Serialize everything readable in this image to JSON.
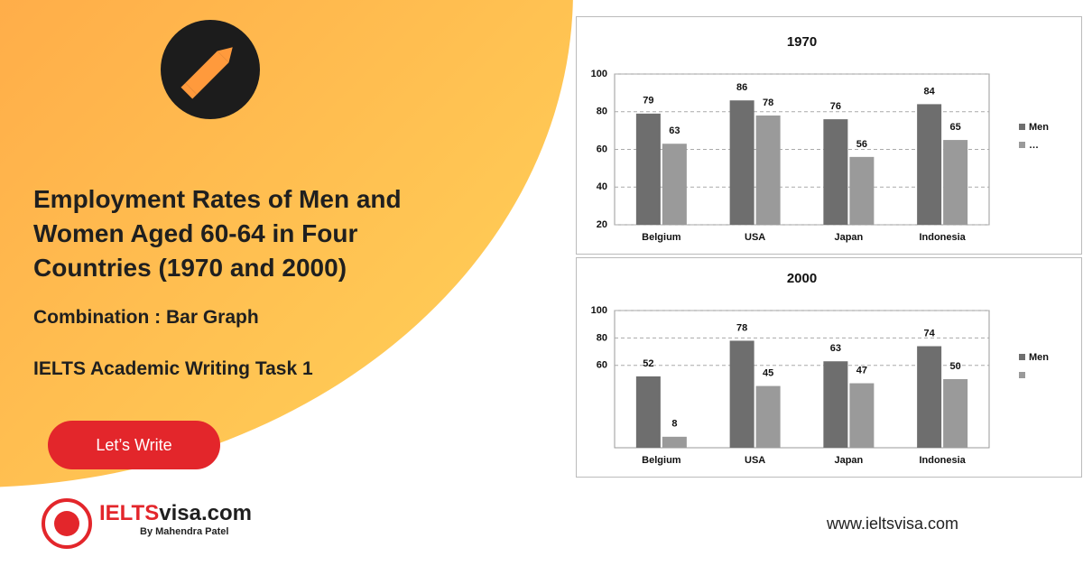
{
  "header": {
    "title": "Employment Rates of Men and Women Aged 60-64 in Four Countries (1970 and 2000)",
    "subtitle": "Combination : Bar Graph",
    "task": "IELTS Academic Writing Task 1",
    "button": "Let’s Write"
  },
  "footer": {
    "logo_brand": "IELTS",
    "logo_domain": "visa.com",
    "byline": "By Mahendra Patel",
    "url": "www.ieltsvisa.com"
  },
  "chart_data": [
    {
      "type": "bar",
      "title": "1970",
      "categories": [
        "Belgium",
        "USA",
        "Japan",
        "Indonesia"
      ],
      "series": [
        {
          "name": "Men",
          "color": "#6e6e6e",
          "values": [
            79,
            86,
            76,
            84
          ]
        },
        {
          "name": "…",
          "color": "#9a9a9a",
          "values": [
            63,
            78,
            56,
            65
          ]
        }
      ],
      "ylim": [
        20,
        100
      ],
      "yticks": [
        20,
        40,
        60,
        80,
        100
      ],
      "grid": true,
      "legend": "right"
    },
    {
      "type": "bar",
      "title": "2000",
      "categories": [
        "Belgium",
        "USA",
        "Japan",
        "Indonesia"
      ],
      "series": [
        {
          "name": "Men",
          "color": "#6e6e6e",
          "values": [
            52,
            78,
            63,
            74
          ]
        },
        {
          "name": null,
          "color": "#9a9a9a",
          "values": [
            8,
            45,
            47,
            50
          ]
        }
      ],
      "ylim": [
        0,
        100
      ],
      "yticks": [
        60,
        80,
        100
      ],
      "grid": true,
      "legend": "right"
    }
  ]
}
